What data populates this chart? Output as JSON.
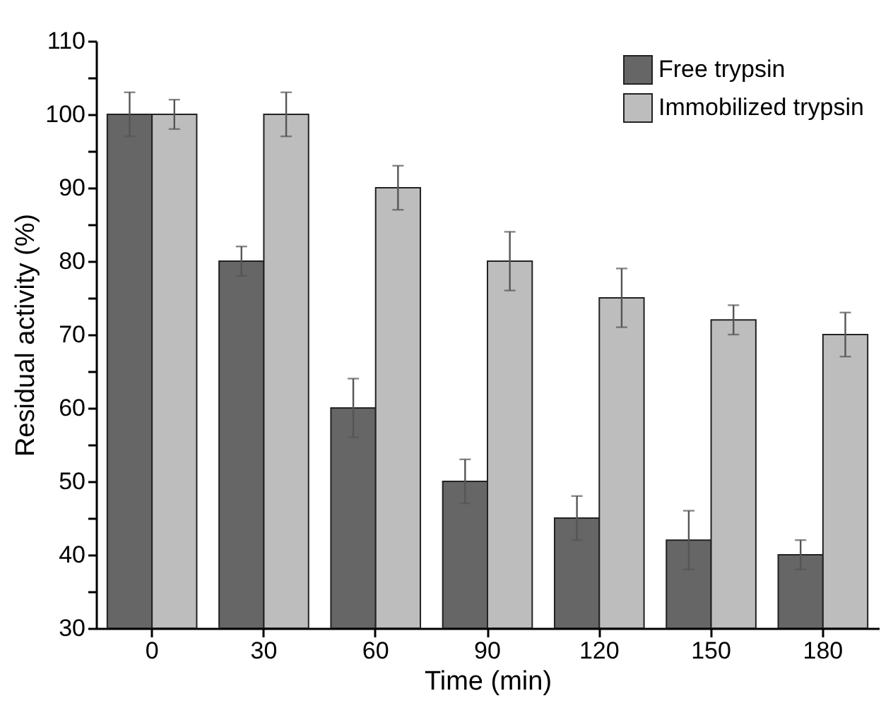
{
  "chart_data": {
    "type": "bar",
    "xlabel": "Time (min)",
    "ylabel": "Residual activity (%)",
    "categories": [
      "0",
      "30",
      "60",
      "90",
      "120",
      "150",
      "180"
    ],
    "series": [
      {
        "name": "Free trypsin",
        "color": "#666666",
        "values": [
          100,
          80,
          60,
          50,
          45,
          42,
          40
        ],
        "errors": [
          3,
          2,
          4,
          3,
          3,
          4,
          2
        ]
      },
      {
        "name": "Immobilized trypsin",
        "color": "#bdbdbd",
        "values": [
          100,
          100,
          90,
          80,
          75,
          72,
          70
        ],
        "errors": [
          2,
          3,
          3,
          4,
          4,
          2,
          3
        ]
      }
    ],
    "ylim": [
      30,
      110
    ],
    "yticks": [
      30,
      {
        "value": 35,
        "label": null
      },
      40,
      {
        "value": 45,
        "label": null
      },
      50,
      {
        "value": 55,
        "label": null
      },
      60,
      {
        "value": 65,
        "label": null
      },
      70,
      {
        "value": 75,
        "label": null
      },
      80,
      {
        "value": 85,
        "label": null
      },
      90,
      {
        "value": 95,
        "label": null
      },
      100,
      {
        "value": 105,
        "label": null
      },
      110
    ],
    "grid": false,
    "legend": "top right"
  }
}
